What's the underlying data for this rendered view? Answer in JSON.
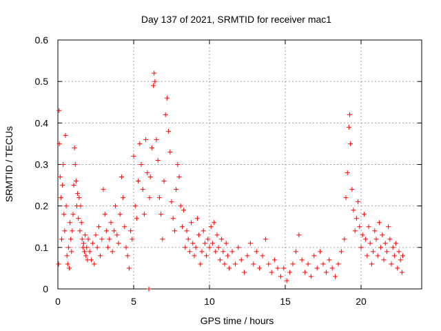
{
  "chart_data": {
    "type": "scatter",
    "title": "Day 137 of 2021, SRMTID for receiver mac1",
    "xlabel": "GPS time / hours",
    "ylabel": "SRMTID / TECUs",
    "xlim": [
      0,
      24
    ],
    "ylim": [
      0,
      0.6
    ],
    "xticks": [
      0,
      5,
      10,
      15,
      20
    ],
    "yticks": [
      0,
      0.1,
      0.2,
      0.3,
      0.4,
      0.5,
      0.6
    ],
    "xtick_labels": [
      "0",
      "5",
      "10",
      "15",
      "20"
    ],
    "ytick_labels": [
      "0",
      "0.1",
      "0.2",
      "0.3",
      "0.4",
      "0.5",
      "0.6"
    ],
    "grid": true,
    "marker": "plus",
    "color": "#ff0000",
    "series": [
      {
        "name": "mac1",
        "points": [
          [
            0.05,
            0.06
          ],
          [
            0.08,
            0.43
          ],
          [
            0.1,
            0.35
          ],
          [
            0.15,
            0.27
          ],
          [
            0.2,
            0.22
          ],
          [
            0.25,
            0.12
          ],
          [
            0.3,
            0.25
          ],
          [
            0.35,
            0.3
          ],
          [
            0.4,
            0.18
          ],
          [
            0.45,
            0.14
          ],
          [
            0.5,
            0.37
          ],
          [
            0.55,
            0.2
          ],
          [
            0.6,
            0.08
          ],
          [
            0.65,
            0.06
          ],
          [
            0.7,
            0.1
          ],
          [
            0.75,
            0.05
          ],
          [
            0.8,
            0.16
          ],
          [
            0.85,
            0.12
          ],
          [
            0.9,
            0.09
          ],
          [
            0.95,
            0.14
          ],
          [
            1.0,
            0.18
          ],
          [
            1.05,
            0.25
          ],
          [
            1.1,
            0.34
          ],
          [
            1.15,
            0.3
          ],
          [
            1.2,
            0.26
          ],
          [
            1.25,
            0.2
          ],
          [
            1.3,
            0.23
          ],
          [
            1.35,
            0.17
          ],
          [
            1.4,
            0.22
          ],
          [
            1.45,
            0.14
          ],
          [
            1.5,
            0.2
          ],
          [
            1.55,
            0.16
          ],
          [
            1.6,
            0.12
          ],
          [
            1.65,
            0.1
          ],
          [
            1.7,
            0.11
          ],
          [
            1.75,
            0.09
          ],
          [
            1.8,
            0.13
          ],
          [
            1.85,
            0.08
          ],
          [
            1.9,
            0.1
          ],
          [
            1.95,
            0.07
          ],
          [
            2.0,
            0.12
          ],
          [
            2.1,
            0.09
          ],
          [
            2.2,
            0.07
          ],
          [
            2.3,
            0.11
          ],
          [
            2.4,
            0.06
          ],
          [
            2.5,
            0.13
          ],
          [
            2.6,
            0.1
          ],
          [
            2.7,
            0.15
          ],
          [
            2.8,
            0.08
          ],
          [
            2.9,
            0.12
          ],
          [
            3.0,
            0.24
          ],
          [
            3.1,
            0.18
          ],
          [
            3.2,
            0.14
          ],
          [
            3.3,
            0.1
          ],
          [
            3.4,
            0.12
          ],
          [
            3.5,
            0.16
          ],
          [
            3.6,
            0.09
          ],
          [
            3.7,
            0.14
          ],
          [
            3.8,
            0.2
          ],
          [
            3.9,
            0.13
          ],
          [
            4.0,
            0.11
          ],
          [
            4.1,
            0.18
          ],
          [
            4.2,
            0.27
          ],
          [
            4.3,
            0.22
          ],
          [
            4.4,
            0.15
          ],
          [
            4.5,
            0.1
          ],
          [
            4.6,
            0.08
          ],
          [
            4.7,
            0.05
          ],
          [
            4.8,
            0.14
          ],
          [
            4.9,
            0.12
          ],
          [
            5.0,
            0.32
          ],
          [
            5.1,
            0.2
          ],
          [
            5.2,
            0.17
          ],
          [
            5.3,
            0.26
          ],
          [
            5.4,
            0.35
          ],
          [
            5.5,
            0.3
          ],
          [
            5.6,
            0.24
          ],
          [
            5.7,
            0.18
          ],
          [
            5.8,
            0.36
          ],
          [
            5.9,
            0.28
          ],
          [
            6.0,
            0.0
          ],
          [
            6.05,
            0.22
          ],
          [
            6.1,
            0.27
          ],
          [
            6.2,
            0.34
          ],
          [
            6.3,
            0.49
          ],
          [
            6.35,
            0.52
          ],
          [
            6.4,
            0.5
          ],
          [
            6.5,
            0.36
          ],
          [
            6.6,
            0.31
          ],
          [
            6.7,
            0.22
          ],
          [
            6.8,
            0.18
          ],
          [
            6.9,
            0.12
          ],
          [
            7.0,
            0.26
          ],
          [
            7.1,
            0.42
          ],
          [
            7.2,
            0.46
          ],
          [
            7.3,
            0.38
          ],
          [
            7.4,
            0.33
          ],
          [
            7.5,
            0.21
          ],
          [
            7.6,
            0.17
          ],
          [
            7.7,
            0.14
          ],
          [
            7.8,
            0.24
          ],
          [
            7.9,
            0.3
          ],
          [
            8.0,
            0.27
          ],
          [
            8.1,
            0.2
          ],
          [
            8.2,
            0.15
          ],
          [
            8.3,
            0.19
          ],
          [
            8.4,
            0.1
          ],
          [
            8.5,
            0.14
          ],
          [
            8.6,
            0.12
          ],
          [
            8.7,
            0.09
          ],
          [
            8.8,
            0.16
          ],
          [
            8.9,
            0.11
          ],
          [
            9.0,
            0.08
          ],
          [
            9.1,
            0.1
          ],
          [
            9.2,
            0.17
          ],
          [
            9.3,
            0.13
          ],
          [
            9.4,
            0.06
          ],
          [
            9.5,
            0.09
          ],
          [
            9.6,
            0.14
          ],
          [
            9.7,
            0.11
          ],
          [
            9.8,
            0.08
          ],
          [
            9.9,
            0.12
          ],
          [
            10.0,
            0.1
          ],
          [
            10.1,
            0.15
          ],
          [
            10.2,
            0.11
          ],
          [
            10.3,
            0.16
          ],
          [
            10.4,
            0.09
          ],
          [
            10.5,
            0.13
          ],
          [
            10.6,
            0.1
          ],
          [
            10.7,
            0.07
          ],
          [
            10.8,
            0.12
          ],
          [
            10.9,
            0.09
          ],
          [
            11.0,
            0.06
          ],
          [
            11.1,
            0.11
          ],
          [
            11.2,
            0.08
          ],
          [
            11.3,
            0.05
          ],
          [
            11.5,
            0.09
          ],
          [
            11.7,
            0.06
          ],
          [
            11.9,
            0.1
          ],
          [
            12.1,
            0.07
          ],
          [
            12.3,
            0.04
          ],
          [
            12.5,
            0.08
          ],
          [
            12.7,
            0.11
          ],
          [
            12.9,
            0.06
          ],
          [
            13.1,
            0.09
          ],
          [
            13.3,
            0.05
          ],
          [
            13.5,
            0.08
          ],
          [
            13.7,
            0.12
          ],
          [
            13.9,
            0.06
          ],
          [
            14.1,
            0.04
          ],
          [
            14.3,
            0.07
          ],
          [
            14.5,
            0.05
          ],
          [
            14.7,
            0.03
          ],
          [
            14.9,
            0.05
          ],
          [
            15.1,
            0.02
          ],
          [
            15.3,
            0.04
          ],
          [
            15.5,
            0.06
          ],
          [
            15.7,
            0.09
          ],
          [
            15.9,
            0.13
          ],
          [
            16.1,
            0.07
          ],
          [
            16.3,
            0.04
          ],
          [
            16.5,
            0.06
          ],
          [
            16.7,
            0.03
          ],
          [
            16.9,
            0.08
          ],
          [
            17.1,
            0.05
          ],
          [
            17.3,
            0.09
          ],
          [
            17.5,
            0.06
          ],
          [
            17.7,
            0.04
          ],
          [
            17.9,
            0.07
          ],
          [
            18.1,
            0.05
          ],
          [
            18.3,
            0.03
          ],
          [
            18.5,
            0.06
          ],
          [
            18.7,
            0.09
          ],
          [
            18.9,
            0.12
          ],
          [
            19.0,
            0.22
          ],
          [
            19.1,
            0.28
          ],
          [
            19.2,
            0.39
          ],
          [
            19.25,
            0.42
          ],
          [
            19.3,
            0.35
          ],
          [
            19.4,
            0.24
          ],
          [
            19.5,
            0.19
          ],
          [
            19.6,
            0.14
          ],
          [
            19.7,
            0.17
          ],
          [
            19.8,
            0.21
          ],
          [
            19.9,
            0.15
          ],
          [
            20.0,
            0.1
          ],
          [
            20.1,
            0.13
          ],
          [
            20.2,
            0.18
          ],
          [
            20.3,
            0.12
          ],
          [
            20.4,
            0.08
          ],
          [
            20.5,
            0.15
          ],
          [
            20.6,
            0.11
          ],
          [
            20.7,
            0.06
          ],
          [
            20.8,
            0.09
          ],
          [
            20.9,
            0.14
          ],
          [
            21.0,
            0.12
          ],
          [
            21.1,
            0.08
          ],
          [
            21.2,
            0.16
          ],
          [
            21.3,
            0.1
          ],
          [
            21.4,
            0.13
          ],
          [
            21.5,
            0.07
          ],
          [
            21.6,
            0.11
          ],
          [
            21.7,
            0.09
          ],
          [
            21.8,
            0.15
          ],
          [
            21.9,
            0.12
          ],
          [
            22.0,
            0.06
          ],
          [
            22.1,
            0.1
          ],
          [
            22.2,
            0.08
          ],
          [
            22.3,
            0.11
          ],
          [
            22.4,
            0.05
          ],
          [
            22.5,
            0.09
          ],
          [
            22.6,
            0.07
          ],
          [
            22.7,
            0.04
          ],
          [
            22.75,
            0.08
          ]
        ]
      }
    ]
  }
}
